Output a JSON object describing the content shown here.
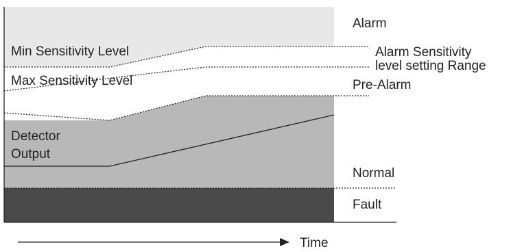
{
  "labels": {
    "min_sensitivity": "Min Sensitivity Level",
    "max_sensitivity": "Max Sensitivity Level",
    "detector_output_line1": "Detector",
    "detector_output_line2": "Output",
    "alarm": "Alarm",
    "alarm_range_line1": "Alarm Sensitivity",
    "alarm_range_line2": "level setting Range",
    "pre_alarm": "Pre-Alarm",
    "normal": "Normal",
    "fault": "Fault",
    "time": "Time"
  },
  "colors": {
    "alarm_zone": "#e8e8e8",
    "pre_alarm_zone": "#ffffff",
    "normal_zone": "#b8b8b8",
    "fault_zone": "#4a4a4a",
    "line": "#222222"
  }
}
